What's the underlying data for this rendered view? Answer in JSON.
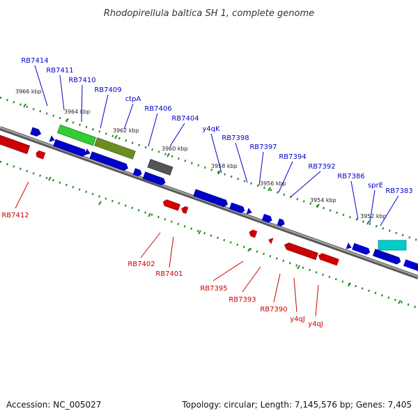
{
  "title": "Rhodopirellula baltica SH 1, complete genome",
  "colors": {
    "forward": "#0000cc",
    "reverse": "#cc0000",
    "green": "#33cc33",
    "olive": "#6b8e23",
    "gray": "#555555",
    "cyan": "#00cccc",
    "tick": "#228b22",
    "backbone": "#808080"
  },
  "scale_labels": [
    "3966 kbp",
    "3964 kbp",
    "3962 kbp",
    "3960 kbp",
    "3958 kbp",
    "3956 kbp",
    "3954 kbp",
    "3952 kbp"
  ],
  "top_labels": [
    "RB7414",
    "RB7411",
    "RB7410",
    "RB7409",
    "ctpA",
    "RB7406",
    "RB7404",
    "y4qK",
    "RB7398",
    "RB7397",
    "RB7394",
    "RB7392",
    "RB7386",
    "sprE",
    "RB7383"
  ],
  "bottom_labels": [
    "RB7412",
    "RB7402",
    "RB7401",
    "RB7395",
    "RB7393",
    "RB7390",
    "y4qJ",
    "y4qJ"
  ],
  "footer": {
    "accession": "Accession: NC_005027",
    "topology": "Topology: circular; Length: 7,145,576 bp; Genes: 7,405"
  }
}
